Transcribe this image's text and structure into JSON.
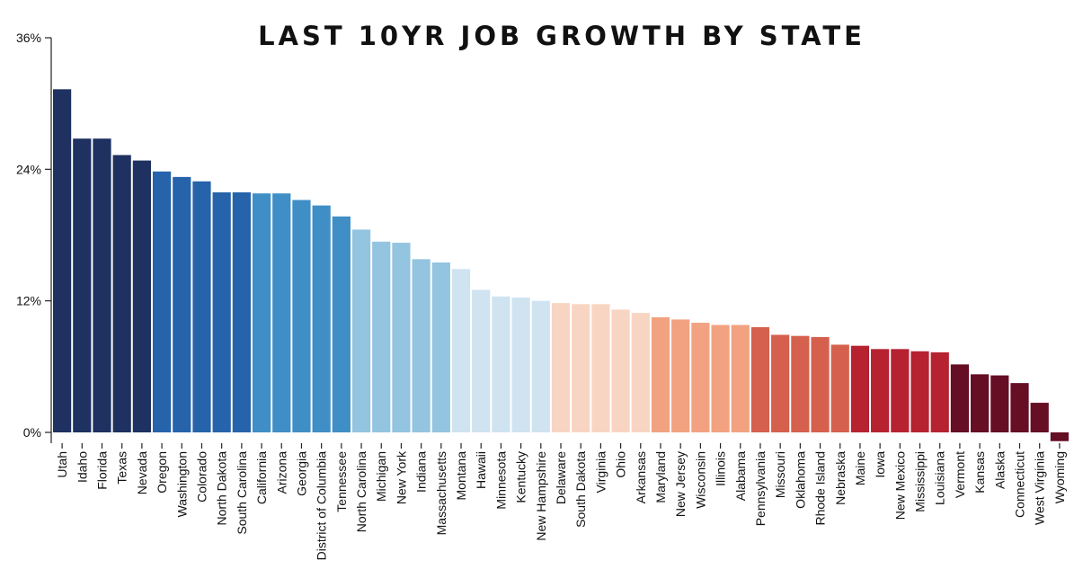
{
  "chart_data": {
    "type": "bar",
    "title": "LAST 10YR JOB GROWTH BY STATE",
    "xlabel": "",
    "ylabel": "",
    "ylim": [
      -1,
      36
    ],
    "yticks": [
      0,
      12,
      24,
      36
    ],
    "ytick_labels": [
      "0%",
      "12%",
      "24%",
      "36%"
    ],
    "grid": false,
    "legend": "none",
    "categories": [
      "Utah",
      "Idaho",
      "Florida",
      "Texas",
      "Nevada",
      "Oregon",
      "Washington",
      "Colorado",
      "North Dakota",
      "South Carolina",
      "California",
      "Arizona",
      "Georgia",
      "District of Columbia",
      "Tennessee",
      "North Carolina",
      "Michigan",
      "New York",
      "Indiana",
      "Massachusetts",
      "Montana",
      "Hawaii",
      "Minnesota",
      "Kentucky",
      "New Hampshire",
      "Delaware",
      "South Dakota",
      "Virginia",
      "Ohio",
      "Arkansas",
      "Maryland",
      "New Jersey",
      "Wisconsin",
      "Illinois",
      "Alabama",
      "Pennsylvania",
      "Missouri",
      "Oklahoma",
      "Rhode Island",
      "Nebraska",
      "Maine",
      "Iowa",
      "New Mexico",
      "Mississippi",
      "Louisiana",
      "Vermont",
      "Kansas",
      "Alaska",
      "Connecticut",
      "West Virginia",
      "Wyoming"
    ],
    "values": [
      31.3,
      26.8,
      26.8,
      25.3,
      24.8,
      23.8,
      23.3,
      22.9,
      21.9,
      21.9,
      21.8,
      21.8,
      21.2,
      20.7,
      19.7,
      18.5,
      17.4,
      17.3,
      15.8,
      15.5,
      14.9,
      13.0,
      12.4,
      12.3,
      12.0,
      11.8,
      11.7,
      11.7,
      11.2,
      10.9,
      10.5,
      10.3,
      10.0,
      9.8,
      9.8,
      9.6,
      8.9,
      8.8,
      8.7,
      8.0,
      7.9,
      7.6,
      7.6,
      7.4,
      7.3,
      6.2,
      5.3,
      5.2,
      4.5,
      2.7,
      -0.8
    ],
    "colors": [
      "#1e3160",
      "#1e3160",
      "#1e3160",
      "#1e3160",
      "#1e3160",
      "#2663ab",
      "#2663ab",
      "#2663ab",
      "#2663ab",
      "#2663ab",
      "#3f8ec6",
      "#3f8ec6",
      "#3f8ec6",
      "#3f8ec6",
      "#3f8ec6",
      "#93c4e0",
      "#93c4e0",
      "#93c4e0",
      "#93c4e0",
      "#93c4e0",
      "#cfe3f1",
      "#cfe3f1",
      "#cfe3f1",
      "#cfe3f1",
      "#cfe3f1",
      "#f8d5c2",
      "#f8d5c2",
      "#f8d5c2",
      "#f8d5c2",
      "#f8d5c2",
      "#f2a281",
      "#f2a281",
      "#f2a281",
      "#f2a281",
      "#f2a281",
      "#d6604e",
      "#d6604e",
      "#d6604e",
      "#d6604e",
      "#d6604e",
      "#b62230",
      "#b62230",
      "#b62230",
      "#b62230",
      "#b62230",
      "#650e24",
      "#650e24",
      "#650e24",
      "#650e24",
      "#650e24",
      "#650e24"
    ]
  }
}
